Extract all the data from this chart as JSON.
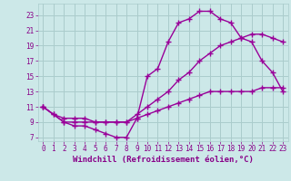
{
  "xlabel": "Windchill (Refroidissement éolien,°C)",
  "background_color": "#cce8e8",
  "grid_color": "#aacccc",
  "line_color": "#990099",
  "line1_x": [
    0,
    1,
    2,
    3,
    4,
    5,
    6,
    7,
    8,
    9,
    10,
    11,
    12,
    13,
    14,
    15,
    16,
    17,
    18,
    19,
    20,
    21,
    22,
    23
  ],
  "line1_y": [
    11,
    10,
    9,
    8.5,
    8.5,
    8,
    7.5,
    7,
    7,
    9.5,
    15,
    16,
    19.5,
    22,
    22.5,
    23.5,
    23.5,
    22.5,
    22,
    20,
    19.5,
    17,
    15.5,
    13
  ],
  "line2_x": [
    0,
    2,
    3,
    4,
    5,
    6,
    7,
    8,
    9,
    10,
    11,
    12,
    13,
    14,
    15,
    16,
    17,
    18,
    19,
    20,
    21,
    22,
    23
  ],
  "line2_y": [
    11,
    9,
    9,
    9,
    9,
    9,
    9,
    9,
    10,
    11,
    12,
    13,
    14.5,
    15.5,
    17,
    18,
    19,
    19.5,
    20,
    20.5,
    20.5,
    20,
    19.5
  ],
  "line3_x": [
    0,
    1,
    2,
    3,
    4,
    5,
    6,
    7,
    8,
    9,
    10,
    11,
    12,
    13,
    14,
    15,
    16,
    17,
    18,
    19,
    20,
    21,
    22,
    23
  ],
  "line3_y": [
    11,
    10,
    9.5,
    9.5,
    9.5,
    9,
    9,
    9,
    9,
    9.5,
    10,
    10.5,
    11,
    11.5,
    12,
    12.5,
    13,
    13,
    13,
    13,
    13,
    13.5,
    13.5,
    13.5
  ],
  "xlim": [
    -0.5,
    23.5
  ],
  "ylim": [
    6.5,
    24.5
  ],
  "yticks": [
    7,
    9,
    11,
    13,
    15,
    17,
    19,
    21,
    23
  ],
  "xticks": [
    0,
    1,
    2,
    3,
    4,
    5,
    6,
    7,
    8,
    9,
    10,
    11,
    12,
    13,
    14,
    15,
    16,
    17,
    18,
    19,
    20,
    21,
    22,
    23
  ],
  "marker": "+",
  "marker_size": 4,
  "line_width": 1.0,
  "font_color": "#880088",
  "tick_fontsize": 5.5,
  "xlabel_fontsize": 6.5
}
